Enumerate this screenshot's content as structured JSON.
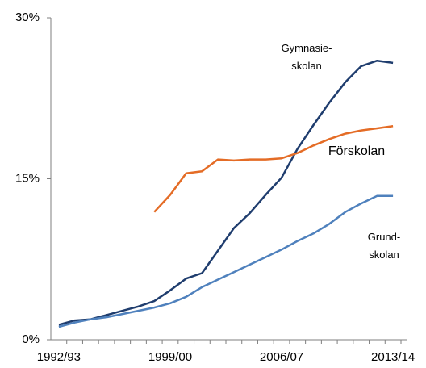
{
  "chart_data": {
    "type": "line",
    "categories": [
      "1992/93",
      null,
      null,
      null,
      null,
      null,
      null,
      "1999/00",
      null,
      null,
      null,
      null,
      null,
      null,
      "2006/07",
      null,
      null,
      null,
      null,
      null,
      null,
      "2013/14"
    ],
    "ylim": [
      0,
      30
    ],
    "yticks": [
      {
        "value": 0,
        "label": "0%"
      },
      {
        "value": 15,
        "label": "15%"
      },
      {
        "value": 30,
        "label": "30%"
      }
    ],
    "series": [
      {
        "name": "Gymnasie-\nskolan",
        "color": "#1f3d6e",
        "values": [
          1.4,
          1.8,
          1.9,
          2.3,
          2.7,
          3.1,
          3.6,
          4.6,
          5.7,
          6.2,
          8.3,
          10.4,
          11.8,
          13.5,
          15.1,
          17.8,
          20.0,
          22.1,
          24.0,
          25.5,
          26.0,
          25.8
        ]
      },
      {
        "name": "Förskolan",
        "color": "#e46c26",
        "values": [
          null,
          null,
          null,
          null,
          null,
          null,
          11.9,
          13.5,
          15.5,
          15.7,
          16.8,
          16.7,
          16.8,
          16.8,
          16.9,
          17.4,
          18.1,
          18.7,
          19.2,
          19.5,
          19.7,
          19.9
        ]
      },
      {
        "name": "Grund-\nskolan",
        "color": "#4f81bd",
        "values": [
          1.2,
          1.6,
          1.9,
          2.1,
          2.4,
          2.7,
          3.0,
          3.4,
          4.0,
          4.9,
          5.6,
          6.3,
          7.0,
          7.7,
          8.4,
          9.2,
          9.9,
          10.8,
          11.9,
          12.7,
          13.4,
          13.4
        ]
      }
    ]
  }
}
